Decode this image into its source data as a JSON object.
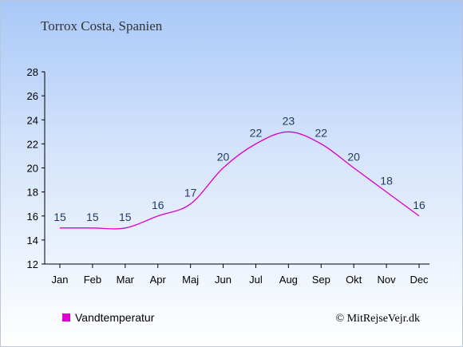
{
  "chart_data": {
    "type": "line",
    "title": "Torrox Costa, Spanien",
    "xlabel": "",
    "ylabel": "",
    "categories": [
      "Jan",
      "Feb",
      "Mar",
      "Apr",
      "Maj",
      "Jun",
      "Jul",
      "Aug",
      "Sep",
      "Okt",
      "Nov",
      "Dec"
    ],
    "series": [
      {
        "name": "Vandtemperatur",
        "values": [
          15,
          15,
          15,
          16,
          17,
          20,
          22,
          23,
          22,
          20,
          18,
          16
        ],
        "color": "#dd00cc"
      }
    ],
    "ylim": [
      12,
      28
    ],
    "yticks": [
      12,
      14,
      16,
      18,
      20,
      22,
      24,
      26,
      28
    ],
    "grid": false,
    "legend": "bottom-left",
    "credit": "© MitRejseVejr.dk"
  }
}
